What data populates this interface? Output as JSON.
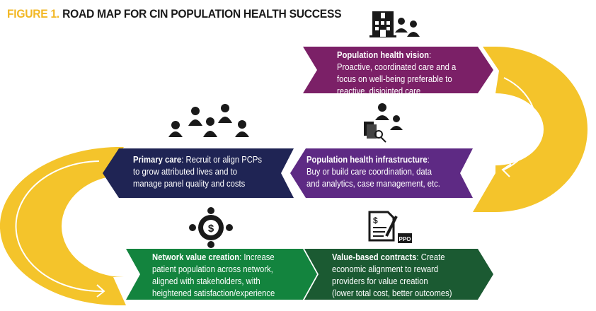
{
  "title": {
    "figure_label": "FIGURE 1.",
    "text": "ROAD MAP FOR CIN POPULATION HEALTH SUCCESS"
  },
  "colors": {
    "accent_gold": "#F2B724",
    "road_yellow": "#F4C42B",
    "vision_purple": "#7B2067",
    "infrastructure_purple": "#5E2A84",
    "primary_navy": "#1F2454",
    "network_green": "#13843E",
    "contracts_green": "#1B5A32"
  },
  "steps": [
    {
      "heading": "Population health vision",
      "lines": [
        "Proactive, coordinated care and a",
        "focus on well-being preferable to",
        "reactive, disjointed care"
      ],
      "icon": "hospital-with-doctors-icon"
    },
    {
      "heading": "Population health infrastructure",
      "lines": [
        "Buy or build care coordination, data",
        "and analytics, case management, etc."
      ],
      "icon": "data-analytics-doctors-icon"
    },
    {
      "heading": "Primary care",
      "first_line_rest": "Recruit or align PCPs",
      "lines": [
        "to grow attributed lives and to",
        "manage panel quality and costs"
      ],
      "icon": "physician-group-icon"
    },
    {
      "heading": "Network value creation",
      "first_line_rest": "Increase",
      "lines": [
        "patient population across network,",
        "aligned with stakeholders, with",
        "heightened satisfaction/experience"
      ],
      "icon": "network-dollar-icon"
    },
    {
      "heading": "Value-based contracts",
      "first_line_rest": "Create",
      "lines": [
        "economic alignment to reward",
        "providers for value creation",
        "(lower total cost, better outcomes)"
      ],
      "icon": "contract-ppo-icon",
      "icon_label": "PPO"
    }
  ]
}
